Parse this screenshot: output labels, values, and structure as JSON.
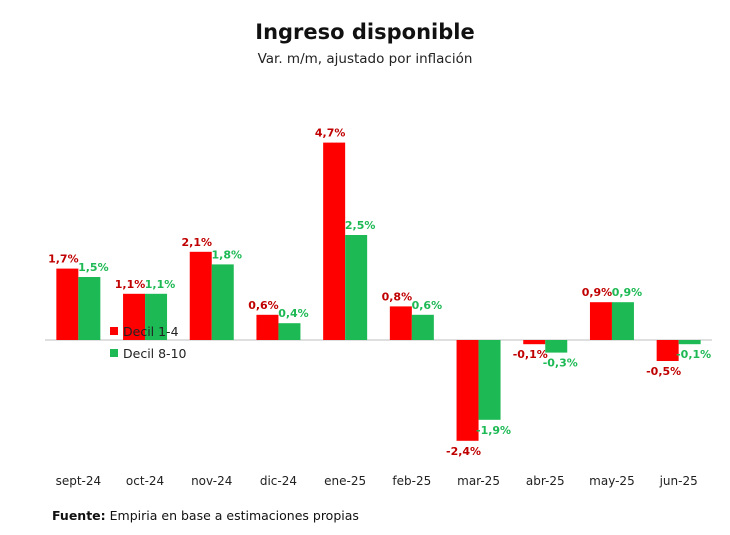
{
  "chart_data": {
    "type": "bar",
    "title": "Ingreso disponible",
    "subtitle": "Var. m/m, ajustado por inflación",
    "categories": [
      "sept-24",
      "oct-24",
      "nov-24",
      "dic-24",
      "ene-25",
      "feb-25",
      "mar-25",
      "abr-25",
      "may-25",
      "jun-25"
    ],
    "series": [
      {
        "name": "Decil 1-4",
        "color": "#FF0000",
        "label_color": "#C00000",
        "values": [
          1.7,
          1.1,
          2.1,
          0.6,
          4.7,
          0.8,
          -2.4,
          -0.1,
          0.9,
          -0.5
        ],
        "labels": [
          "1,7%",
          "1,1%",
          "2,1%",
          "0,6%",
          "4,7%",
          "0,8%",
          "-2,4%",
          "-0,1%",
          "0,9%",
          "-0,5%"
        ]
      },
      {
        "name": "Decil 8-10",
        "color": "#1DB954",
        "label_color": "#1DB954",
        "values": [
          1.5,
          1.1,
          1.8,
          0.4,
          2.5,
          0.6,
          -1.9,
          -0.3,
          0.9,
          -0.1
        ],
        "labels": [
          "1,5%",
          "1,1%",
          "1,8%",
          "0,4%",
          "2,5%",
          "0,6%",
          "-1,9%",
          "-0,3%",
          "0,9%",
          "-0,1%"
        ]
      }
    ],
    "ylim": [
      -3,
      5
    ],
    "grid": false,
    "legend_position": "inside-left",
    "xlabel": "",
    "ylabel": ""
  },
  "source": {
    "label": "Fuente:",
    "text": "Empiria en base a estimaciones propias"
  }
}
